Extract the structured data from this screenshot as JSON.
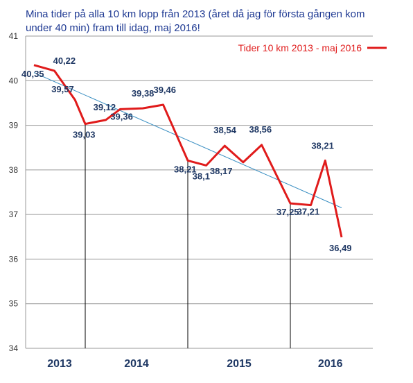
{
  "chart_data": {
    "type": "line",
    "title_lines": [
      "Mina tider på alla 10 km lopp från 2013 (året då jag för första gången kom",
      "under 40 min) fram till idag, maj 2016!"
    ],
    "ylim": [
      34,
      41
    ],
    "yticks": [
      34,
      35,
      36,
      37,
      38,
      39,
      40,
      41
    ],
    "grid": true,
    "legend_position": "top-right",
    "colors": {
      "line": "#e01b1b",
      "trend": "#3a8fc2",
      "label": "#1f3864",
      "grid": "#9a9a9a",
      "divider": "#000000"
    },
    "x_groups": [
      {
        "label": "2013",
        "start": 0,
        "end": 2.5
      },
      {
        "label": "2014",
        "start": 2.5,
        "end": 7.5
      },
      {
        "label": "2015",
        "start": 7.5,
        "end": 12.5
      },
      {
        "label": "2016",
        "start": 12.5,
        "end": 16.4
      }
    ],
    "dividers": [
      2.5,
      7.5,
      12.5
    ],
    "series": [
      {
        "name": "Tider 10 km 2013 - maj 2016",
        "x": [
          0,
          1,
          2,
          2.5,
          3.5,
          4.2,
          5.3,
          6.3,
          7.5,
          8.4,
          9.3,
          10.2,
          11.1,
          12.5,
          13.5,
          14.2,
          15.0
        ],
        "values": [
          40.35,
          40.22,
          39.57,
          39.03,
          39.12,
          39.36,
          39.38,
          39.46,
          38.21,
          38.1,
          38.54,
          38.17,
          38.56,
          37.25,
          37.21,
          38.21,
          36.49
        ],
        "labels": [
          "40,35",
          "40,22",
          "39,57",
          "39,03",
          "39,12",
          "39,36",
          "39,38",
          "39,46",
          "38,21",
          "38,1",
          "38,54",
          "38,17",
          "38,56",
          "37,25",
          "37,21",
          "38,21",
          "36,49"
        ]
      }
    ],
    "trendline": {
      "x": [
        0,
        15.0
      ],
      "values": [
        40.18,
        37.15
      ]
    }
  }
}
